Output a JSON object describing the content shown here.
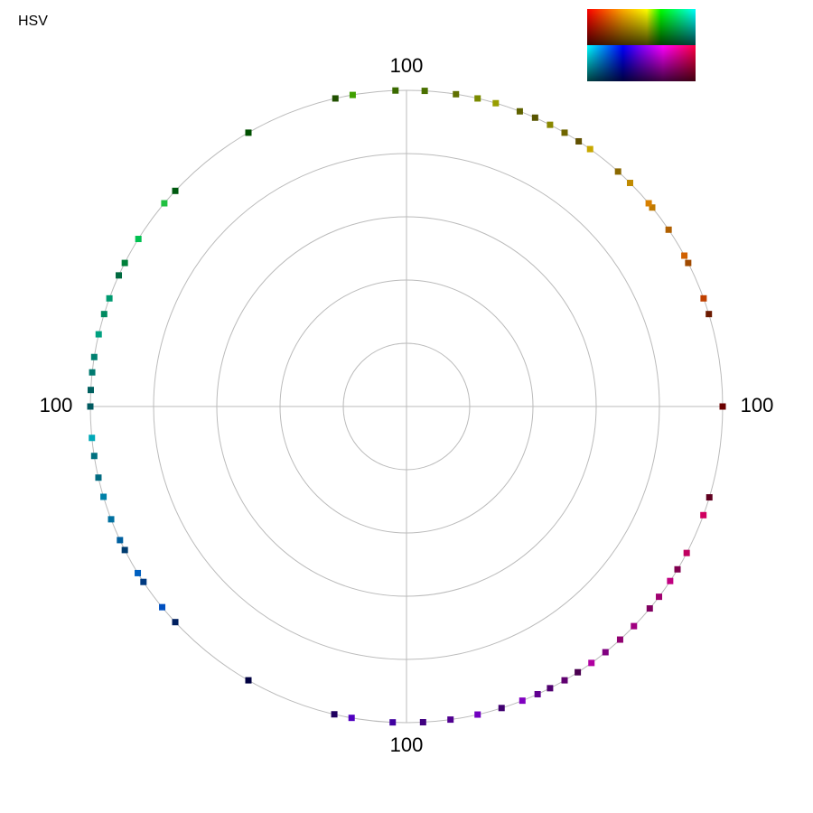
{
  "chart_data": {
    "type": "polar-scatter",
    "title": "HSV",
    "rlim": [
      0,
      100
    ],
    "rticks": [
      20,
      40,
      60,
      80,
      100
    ],
    "thetaticks": [
      0,
      90,
      180,
      270
    ],
    "theta": [
      0,
      17,
      20,
      27,
      28.5,
      34,
      39,
      40,
      45,
      48,
      54.5,
      57,
      60,
      63,
      66,
      69,
      73.6,
      77,
      81,
      86.7,
      92,
      99.8,
      103,
      120,
      137,
      140,
      148,
      153,
      155.5,
      160,
      163,
      166.8,
      171,
      173.8,
      177,
      180,
      185.7,
      189,
      193,
      196.6,
      200.9,
      205,
      207,
      211.8,
      213.7,
      219.4,
      223,
      240,
      256.8,
      260,
      267.5,
      273,
      278,
      283,
      287.5,
      291.5,
      294.5,
      297,
      300,
      302.8,
      305.8,
      309,
      312.5,
      316,
      320.3,
      323,
      326.5,
      329,
      332.4,
      339.9,
      343.3
    ],
    "r": [
      100,
      100,
      100,
      100,
      100,
      100,
      100,
      100,
      100,
      100,
      100,
      100,
      100,
      100,
      100,
      100,
      100,
      100,
      100,
      100,
      100,
      100,
      100,
      100,
      100,
      100,
      100,
      100,
      100,
      100,
      100,
      100,
      100,
      100,
      100,
      100,
      100,
      100,
      100,
      100,
      100,
      100,
      100,
      100,
      100,
      100,
      100,
      100,
      100,
      100,
      100,
      100,
      100,
      100,
      100,
      100,
      100,
      100,
      100,
      100,
      100,
      100,
      100,
      100,
      100,
      100,
      100,
      100,
      100,
      100,
      100
    ],
    "colors": [
      "#6b0000",
      "#6b1a00",
      "#c04000",
      "#a04a00",
      "#d06000",
      "#b06000",
      "#c07a00",
      "#d88000",
      "#c08a00",
      "#8a6800",
      "#c8a800",
      "#605000",
      "#706600",
      "#8a8800",
      "#585500",
      "#5f6200",
      "#989e00",
      "#7a8a00",
      "#607000",
      "#4a7000",
      "#3a6a00",
      "#40a000",
      "#205000",
      "#005000",
      "#005a10",
      "#20c040",
      "#00c050",
      "#00803a",
      "#006a40",
      "#009a70",
      "#008a60",
      "#00a080",
      "#008070",
      "#007a70",
      "#006060",
      "#005a60",
      "#00a8b8",
      "#007080",
      "#006a80",
      "#0080a8",
      "#0070a0",
      "#0060a0",
      "#003c70",
      "#0060c0",
      "#003a80",
      "#0050c0",
      "#002060",
      "#000040",
      "#200060",
      "#5000c0",
      "#4000a0",
      "#400080",
      "#500090",
      "#7000c0",
      "#400070",
      "#8000c0",
      "#600090",
      "#500070",
      "#600070",
      "#4a0050",
      "#b000a0",
      "#800080",
      "#900070",
      "#a00080",
      "#800060",
      "#a00070",
      "#c00080",
      "#800050",
      "#c00060",
      "#d00060",
      "#600020"
    ]
  }
}
